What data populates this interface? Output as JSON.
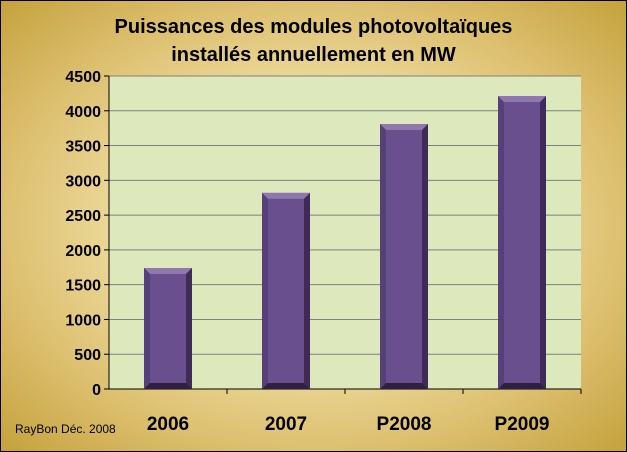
{
  "chart_data": {
    "type": "bar",
    "title": "Puissances des modules photovoltaïques\ninstallés annuellement en MW",
    "categories": [
      "2006",
      "2007",
      "P2008",
      "P2009"
    ],
    "values": [
      1740,
      2820,
      3810,
      4210
    ],
    "ylim": [
      0,
      4500
    ],
    "yticks": [
      0,
      500,
      1000,
      1500,
      2000,
      2500,
      3000,
      3500,
      4000,
      4500
    ],
    "grid": true,
    "legend": "none"
  },
  "credit": "RayBon Déc. 2008",
  "colors": {
    "bar_front": "#6a4f8f",
    "bar_side": "#3f2a58",
    "plot_bg": "#dde8bc",
    "grid": "#7f7f7f"
  }
}
